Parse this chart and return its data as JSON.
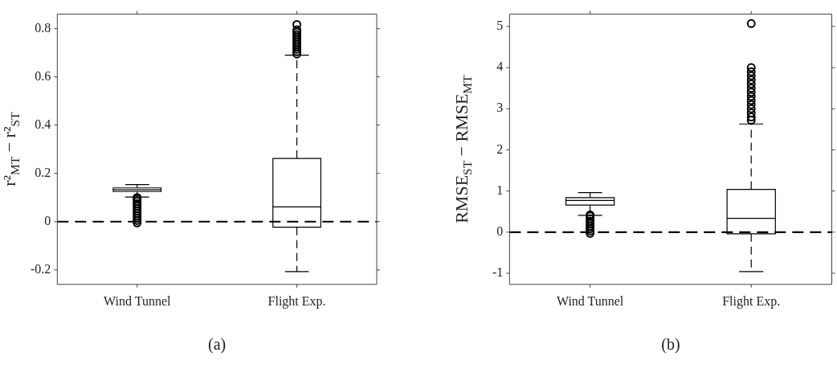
{
  "chart_data": [
    {
      "type": "box",
      "categories": [
        "Wind Tunnel",
        "Flight Exp."
      ],
      "ylabel": "r²$_{MT}$ − r²$_{ST}$",
      "ylim": [
        -0.26,
        0.86
      ],
      "yticks": [
        -0.2,
        0,
        0.2,
        0.4,
        0.6,
        0.8
      ],
      "grid": false,
      "color": "#000000",
      "boxes": [
        {
          "low": 0.102,
          "q1": 0.125,
          "median": 0.132,
          "q3": 0.14,
          "high": 0.154,
          "outliers": [
            -0.005,
            0.005,
            0.015,
            0.025,
            0.035,
            0.045,
            0.055,
            0.065,
            0.075,
            0.085,
            0.095,
            0.1
          ]
        },
        {
          "low": -0.207,
          "q1": -0.023,
          "median": 0.061,
          "q3": 0.262,
          "high": 0.69,
          "outliers": [
            0.695,
            0.705,
            0.715,
            0.725,
            0.735,
            0.745,
            0.755,
            0.765,
            0.775,
            0.785,
            0.795,
            0.817
          ]
        }
      ],
      "ref_lines": [
        {
          "axis": "y",
          "value": 0,
          "color": "#000000",
          "line_style": "dashed"
        }
      ],
      "annotations": [
        "(a)"
      ]
    },
    {
      "type": "box",
      "categories": [
        "Wind Tunnel",
        "Flight Exp."
      ],
      "ylabel": "RMSE$_{ST}$ − RMSE$_{MT}$",
      "ylim": [
        -1.27,
        5.3
      ],
      "yticks": [
        -1,
        0,
        1,
        2,
        3,
        4,
        5
      ],
      "grid": false,
      "color": "#000000",
      "boxes": [
        {
          "low": 0.41,
          "q1": 0.66,
          "median": 0.77,
          "q3": 0.84,
          "high": 0.96,
          "outliers": [
            -0.03,
            0.03,
            0.09,
            0.15,
            0.21,
            0.27,
            0.33,
            0.39,
            0.42
          ]
        },
        {
          "low": -0.96,
          "q1": -0.04,
          "median": 0.335,
          "q3": 1.04,
          "high": 2.63,
          "outliers": [
            2.72,
            2.8,
            2.9,
            3.0,
            3.1,
            3.2,
            3.3,
            3.4,
            3.5,
            3.6,
            3.7,
            3.8,
            3.9,
            4.0,
            5.07
          ]
        }
      ],
      "ref_lines": [
        {
          "axis": "y",
          "value": 0,
          "color": "#000000",
          "line_style": "dashed"
        }
      ],
      "annotations": [
        "(b)"
      ]
    }
  ]
}
